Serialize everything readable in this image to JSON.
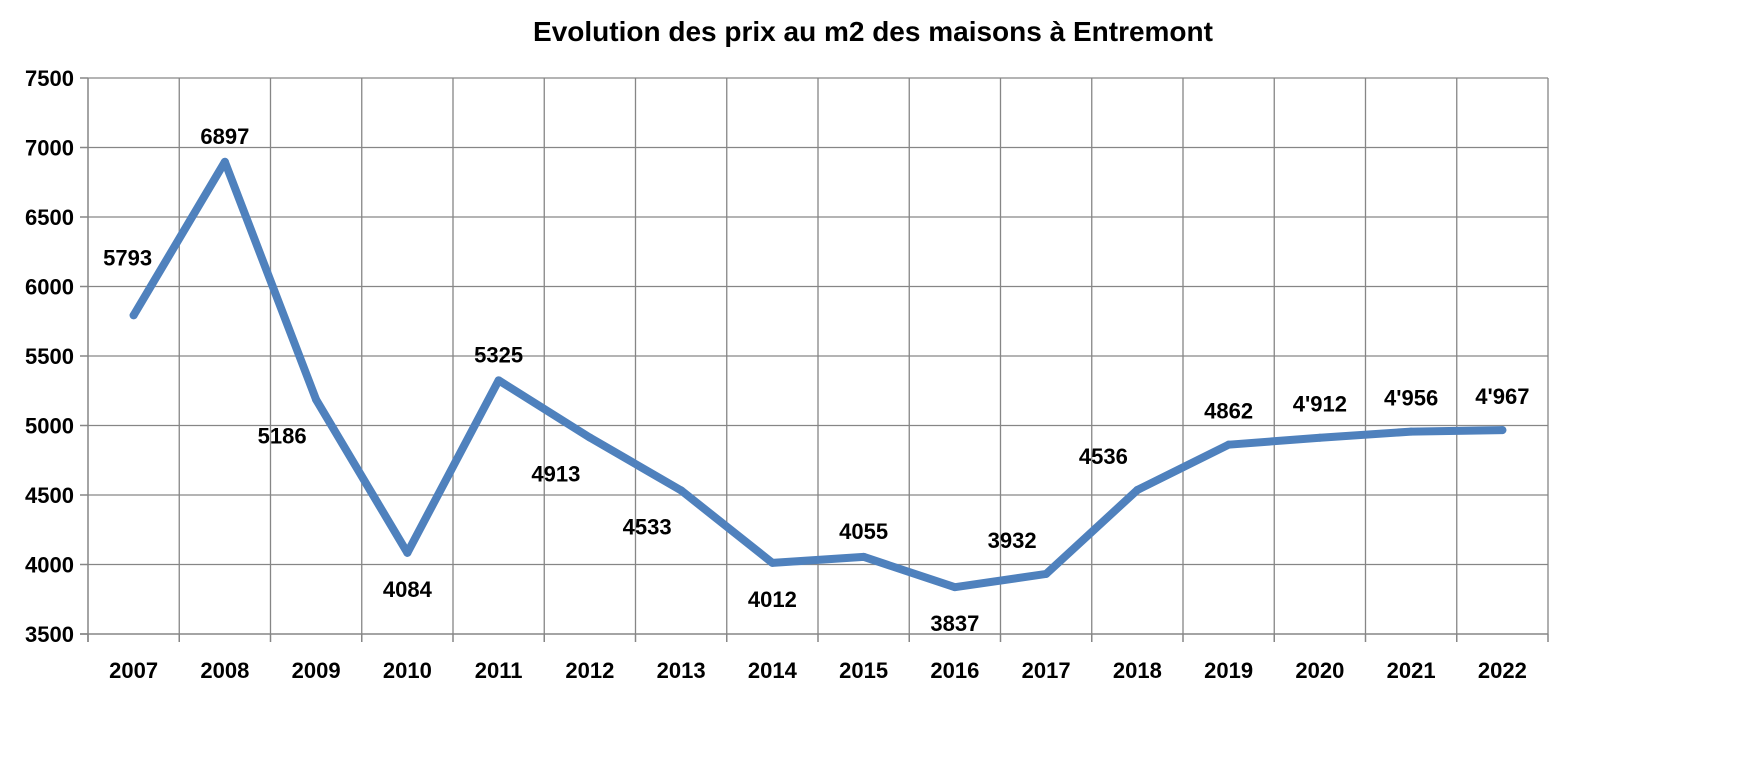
{
  "chart_data": {
    "type": "line",
    "title": "Evolution des prix au m2 des maisons à Entremont",
    "xlabel": "",
    "ylabel": "",
    "categories": [
      "2007",
      "2008",
      "2009",
      "2010",
      "2011",
      "2012",
      "2013",
      "2014",
      "2015",
      "2016",
      "2017",
      "2018",
      "2019",
      "2020",
      "2021",
      "2022"
    ],
    "series": [
      {
        "values": [
          5793,
          6897,
          5186,
          4084,
          5325,
          4913,
          4533,
          4012,
          4055,
          3837,
          3932,
          4536,
          4862,
          4912,
          4956,
          4967
        ],
        "labels": [
          "5793",
          "6897",
          "5186",
          "4084",
          "5325",
          "4913",
          "4533",
          "4012",
          "4055",
          "3837",
          "3932",
          "4536",
          "4862",
          "4'912",
          "4'956",
          "4'967"
        ],
        "color": "#4f81bd"
      }
    ],
    "ylim": [
      3500,
      7500
    ],
    "yticks": [
      "3500",
      "4000",
      "4500",
      "5000",
      "5500",
      "6000",
      "6500",
      "7000",
      "7500"
    ],
    "grid": true,
    "legend": "none"
  }
}
